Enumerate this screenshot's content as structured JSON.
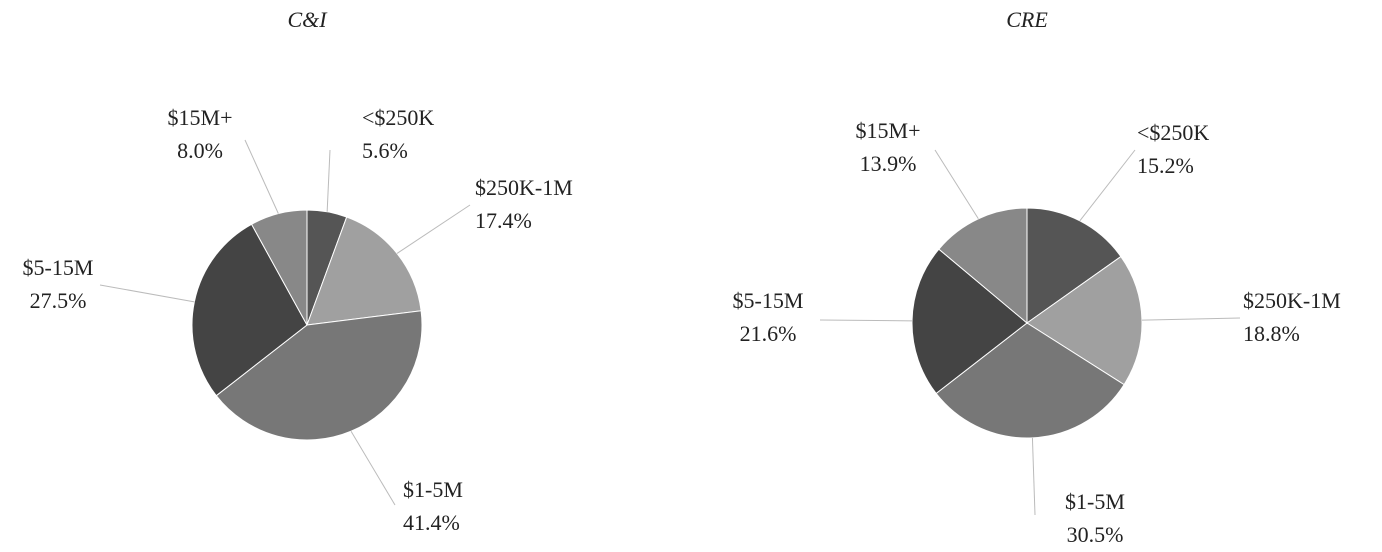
{
  "chart_data": [
    {
      "type": "pie",
      "title": "C&I",
      "categories": [
        "<$250K",
        "$250K-1M",
        "$1-5M",
        "$5-15M",
        "$15M+"
      ],
      "values": [
        5.6,
        17.4,
        41.4,
        27.5,
        8.0
      ],
      "value_labels": [
        "5.6%",
        "17.4%",
        "41.4%",
        "27.5%",
        "8.0%"
      ],
      "colors": [
        "#555555",
        "#a0a0a0",
        "#777777",
        "#444444",
        "#888888"
      ]
    },
    {
      "type": "pie",
      "title": "CRE",
      "categories": [
        "<$250K",
        "$250K-1M",
        "$1-5M",
        "$5-15M",
        "$15M+"
      ],
      "values": [
        15.2,
        18.8,
        30.5,
        21.6,
        13.9
      ],
      "value_labels": [
        "15.2%",
        "18.8%",
        "30.5%",
        "21.6%",
        "13.9%"
      ],
      "colors": [
        "#555555",
        "#a0a0a0",
        "#777777",
        "#444444",
        "#888888"
      ]
    }
  ]
}
